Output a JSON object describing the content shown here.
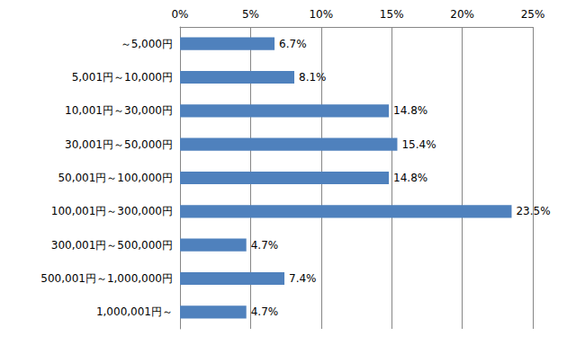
{
  "chart_data": {
    "type": "bar",
    "orientation": "horizontal",
    "categories": [
      "～5,000円",
      "5,001円～10,000円",
      "10,001円～30,000円",
      "30,001円～50,000円",
      "50,001円～100,000円",
      "100,001円～300,000円",
      "300,001円～500,000円",
      "500,001円～1,000,000円",
      "1,000,001円～"
    ],
    "values": [
      6.7,
      8.1,
      14.8,
      15.4,
      14.8,
      23.5,
      4.7,
      7.4,
      4.7
    ],
    "value_labels": [
      "6.7%",
      "8.1%",
      "14.8%",
      "15.4%",
      "14.8%",
      "23.5%",
      "4.7%",
      "7.4%",
      "4.7%"
    ],
    "color": "#4f81bd",
    "xlim": [
      0,
      25
    ],
    "xticks": [
      {
        "value": 0,
        "label": "0%"
      },
      {
        "value": 5,
        "label": "5%"
      },
      {
        "value": 10,
        "label": "10%"
      },
      {
        "value": 15,
        "label": "15%"
      },
      {
        "value": 20,
        "label": "20%"
      },
      {
        "value": 25,
        "label": "25%"
      }
    ],
    "grid": true,
    "data_labels": true
  }
}
